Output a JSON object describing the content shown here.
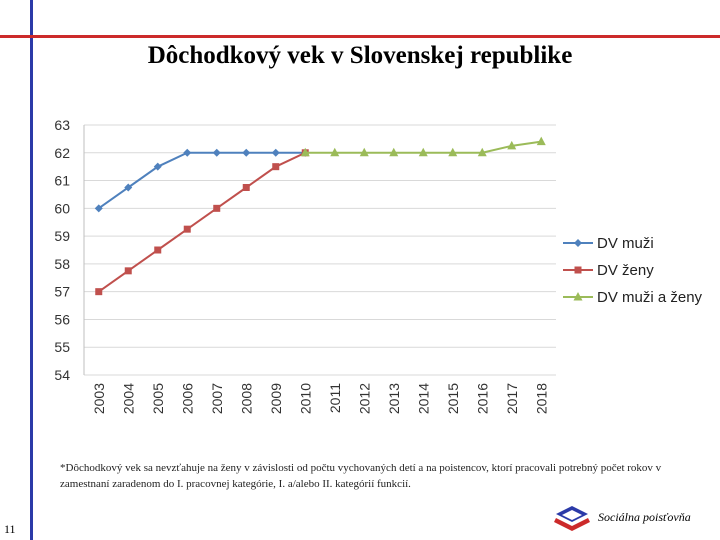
{
  "slide": {
    "title": "Dôchodkový vek v Slovenskej republike",
    "footnote": "*Dôchodkový vek sa nevzťahuje na ženy v závislosti od počtu vychovaných detí a na poistencov, ktorí pracovali potrebný počet rokov v zamestnaní zaradenom do I. pracovnej kategórie, I. a/alebo II. kategórií funkcií.",
    "page_number": "11",
    "brand": "Sociálna poisťovňa",
    "colors": {
      "frame_blue": "#2b3aa8",
      "frame_red": "#cc2a2a"
    }
  },
  "chart_data": {
    "type": "line",
    "title": "",
    "xlabel": "",
    "ylabel": "",
    "ylim": [
      54,
      63
    ],
    "yticks": [
      63,
      62,
      61,
      60,
      59,
      58,
      57,
      56,
      55,
      54
    ],
    "categories": [
      "2003",
      "2004",
      "2005",
      "2006",
      "2007",
      "2008",
      "2009",
      "2010",
      "2011",
      "2012",
      "2013",
      "2014",
      "2015",
      "2016",
      "2017",
      "2018"
    ],
    "grid": true,
    "legend_position": "right",
    "series": [
      {
        "name": "DV muži",
        "color": "#4f81bd",
        "marker": "diamond",
        "values": [
          60,
          60.75,
          61.5,
          62,
          62,
          62,
          62,
          62,
          null,
          null,
          null,
          null,
          null,
          null,
          null,
          null
        ]
      },
      {
        "name": "DV ženy",
        "color": "#c0504d",
        "marker": "square",
        "values": [
          57,
          57.75,
          58.5,
          59.25,
          60,
          60.75,
          61.5,
          62,
          null,
          null,
          null,
          null,
          null,
          null,
          null,
          null
        ]
      },
      {
        "name": "DV muži a ženy",
        "color": "#9bbb59",
        "marker": "triangle",
        "values": [
          null,
          null,
          null,
          null,
          null,
          null,
          null,
          62,
          62,
          62,
          62,
          62,
          62,
          62,
          62.25,
          62.4
        ]
      }
    ]
  }
}
